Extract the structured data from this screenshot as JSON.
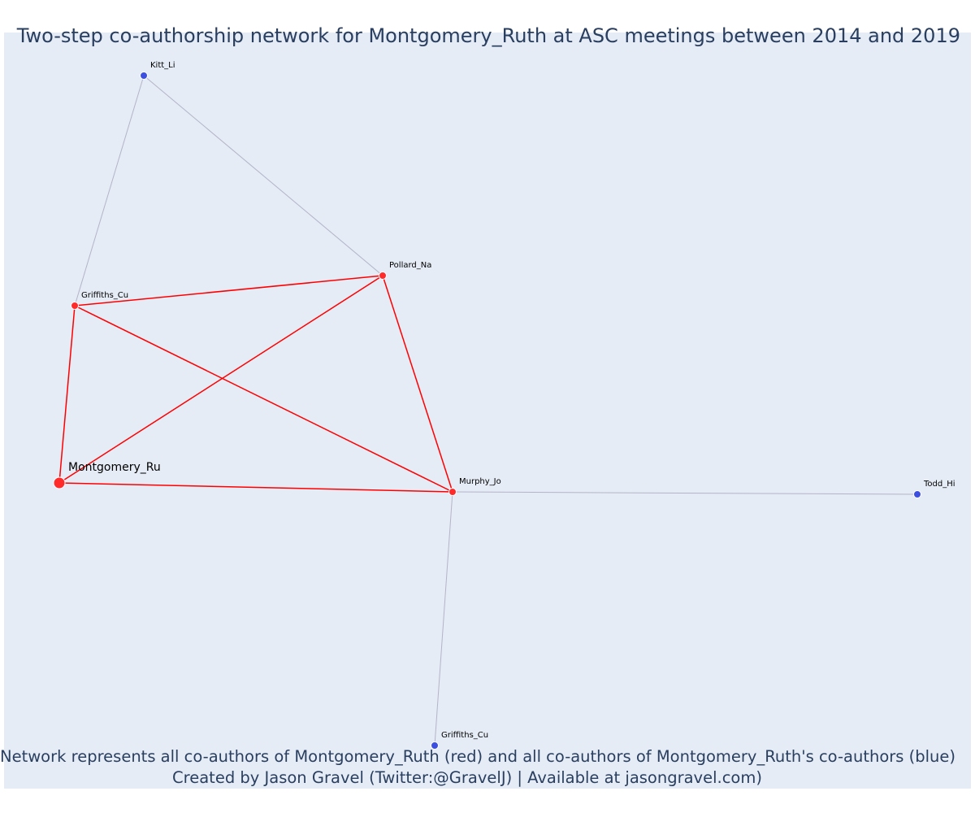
{
  "title": "Two-step co-authorship network for Montgomery_Ruth at ASC meetings between 2014 and 2019",
  "caption": {
    "line1": "Network represents all co-authors of Montgomery_Ruth (red) and all co-authors of Montgomery_Ruth's co-authors (blue)",
    "line2": "Created by Jason Gravel (Twitter:@GravelJ) | Available at jasongravel.com)"
  },
  "colors": {
    "background": "#e5ecf6",
    "red_node": "#ff2a2a",
    "blue_node": "#3c4fe0",
    "red_edge": "#ff0000",
    "grey_edge": "#b4b4c8"
  },
  "nodes": [
    {
      "id": "montgomery",
      "label": "Montgomery_Ru",
      "group": "focal"
    },
    {
      "id": "griffiths1",
      "label": "Griffiths_Cu",
      "group": "red"
    },
    {
      "id": "pollard",
      "label": "Pollard_Na",
      "group": "red"
    },
    {
      "id": "murphy",
      "label": "Murphy_Jo",
      "group": "red"
    },
    {
      "id": "kitt",
      "label": "Kitt_Li",
      "group": "blue"
    },
    {
      "id": "todd",
      "label": "Todd_Hi",
      "group": "blue"
    },
    {
      "id": "griffiths2",
      "label": "Griffiths_Cu",
      "group": "blue"
    }
  ],
  "edges": [
    {
      "from": "montgomery",
      "to": "griffiths1",
      "type": "red"
    },
    {
      "from": "montgomery",
      "to": "pollard",
      "type": "red"
    },
    {
      "from": "montgomery",
      "to": "murphy",
      "type": "red"
    },
    {
      "from": "griffiths1",
      "to": "pollard",
      "type": "red"
    },
    {
      "from": "griffiths1",
      "to": "murphy",
      "type": "red"
    },
    {
      "from": "pollard",
      "to": "murphy",
      "type": "red"
    },
    {
      "from": "kitt",
      "to": "griffiths1",
      "type": "grey"
    },
    {
      "from": "kitt",
      "to": "pollard",
      "type": "grey"
    },
    {
      "from": "murphy",
      "to": "todd",
      "type": "grey"
    },
    {
      "from": "murphy",
      "to": "griffiths2",
      "type": "grey"
    }
  ]
}
